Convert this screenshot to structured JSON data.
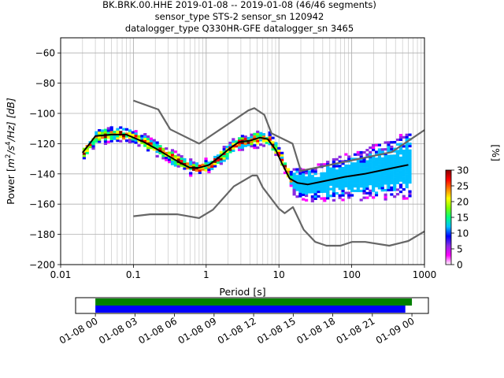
{
  "chart_data": [
    {
      "type": "heatmap",
      "title_lines": [
        "BK.BRK.00.HHE   2019-01-08 -- 2019-01-08  (46/46 segments)",
        "sensor_type STS-2 sensor_sn 120942",
        "datalogger_type Q330HR-GFE datalogger_sn 3465"
      ],
      "xlabel": "Period [s]",
      "ylabel_prefix": "Power [",
      "ylabel_math": "m",
      "ylabel_exp1": "2",
      "ylabel_mid": "/s",
      "ylabel_exp2": "4",
      "ylabel_suffix": "/Hz] [dB]",
      "xscale": "log",
      "xlim": [
        0.01,
        1000
      ],
      "ylim": [
        -200,
        -50
      ],
      "xticks": [
        {
          "value": 0.01,
          "label": "0.01"
        },
        {
          "value": 0.1,
          "label": "0.1"
        },
        {
          "value": 1,
          "label": "1"
        },
        {
          "value": 10,
          "label": "10"
        },
        {
          "value": 100,
          "label": "100"
        },
        {
          "value": 1000,
          "label": "1000"
        }
      ],
      "yticks": [
        {
          "value": -60,
          "label": "−60"
        },
        {
          "value": -80,
          "label": "−80"
        },
        {
          "value": -100,
          "label": "−100"
        },
        {
          "value": -120,
          "label": "−120"
        },
        {
          "value": -140,
          "label": "−140"
        },
        {
          "value": -160,
          "label": "−160"
        },
        {
          "value": -180,
          "label": "−180"
        },
        {
          "value": -200,
          "label": "−200"
        }
      ],
      "grid": true,
      "colorbar": {
        "label": "[%]",
        "range": [
          0,
          30
        ],
        "ticks": [
          {
            "value": 0,
            "label": "0"
          },
          {
            "value": 5,
            "label": "5"
          },
          {
            "value": 10,
            "label": "10"
          },
          {
            "value": 15,
            "label": "15"
          },
          {
            "value": 20,
            "label": "20"
          },
          {
            "value": 25,
            "label": "25"
          },
          {
            "value": 30,
            "label": "30"
          }
        ],
        "colors": [
          "#ffffff",
          "#ff00ff",
          "#8a2be2",
          "#0000ff",
          "#00bfff",
          "#00ff7f",
          "#7fff00",
          "#ffff00",
          "#ff8000",
          "#ff0000",
          "#8b0000"
        ]
      },
      "series": [
        {
          "role": "noise-model-high",
          "color": "#666666",
          "points": [
            [
              0.1,
              -91.5
            ],
            [
              0.22,
              -97.4
            ],
            [
              0.32,
              -110.5
            ],
            [
              0.8,
              -120
            ],
            [
              3.8,
              -98
            ],
            [
              4.6,
              -96.5
            ],
            [
              6.3,
              -101
            ],
            [
              7.9,
              -113.2
            ],
            [
              15.4,
              -120
            ],
            [
              20,
              -138
            ],
            [
              354,
              -125.6
            ],
            [
              1000,
              -111
            ]
          ]
        },
        {
          "role": "noise-model-low",
          "color": "#666666",
          "points": [
            [
              0.1,
              -168
            ],
            [
              0.17,
              -166.7
            ],
            [
              0.4,
              -166.7
            ],
            [
              0.8,
              -169.2
            ],
            [
              1.24,
              -163.7
            ],
            [
              2.4,
              -148.3
            ],
            [
              4.3,
              -141.1
            ],
            [
              5,
              -141.1
            ],
            [
              6,
              -149
            ],
            [
              10,
              -163
            ],
            [
              12,
              -166
            ],
            [
              15.6,
              -162
            ],
            [
              21.9,
              -177
            ],
            [
              31.6,
              -185
            ],
            [
              45,
              -187.5
            ],
            [
              70,
              -187.5
            ],
            [
              101,
              -185
            ],
            [
              154,
              -185
            ],
            [
              328,
              -187.5
            ],
            [
              600,
              -184.4
            ],
            [
              1000,
              -178
            ]
          ]
        },
        {
          "role": "mode",
          "color": "#000000",
          "points": [
            [
              0.02,
              -126
            ],
            [
              0.026,
              -119
            ],
            [
              0.03,
              -115
            ],
            [
              0.05,
              -114
            ],
            [
              0.08,
              -114
            ],
            [
              0.1,
              -116
            ],
            [
              0.14,
              -119
            ],
            [
              0.2,
              -123
            ],
            [
              0.3,
              -128
            ],
            [
              0.45,
              -133
            ],
            [
              0.6,
              -136
            ],
            [
              0.8,
              -136
            ],
            [
              1.1,
              -134
            ],
            [
              1.5,
              -129
            ],
            [
              2,
              -124
            ],
            [
              2.8,
              -119
            ],
            [
              4,
              -118
            ],
            [
              5.5,
              -116
            ],
            [
              7,
              -117
            ],
            [
              9,
              -124
            ],
            [
              11,
              -133
            ],
            [
              14,
              -143
            ],
            [
              18,
              -146
            ],
            [
              25,
              -147
            ],
            [
              40,
              -145
            ],
            [
              80,
              -142
            ],
            [
              150,
              -140
            ],
            [
              300,
              -137
            ],
            [
              600,
              -134
            ]
          ]
        }
      ]
    },
    {
      "type": "timeline",
      "xlim": [
        "2019-01-07 22:30",
        "2019-01-09 01:15"
      ],
      "xticks": [
        {
          "value": "2019-01-08 00:00",
          "label": "01-08 00"
        },
        {
          "value": "2019-01-08 03:00",
          "label": "01-08 03"
        },
        {
          "value": "2019-01-08 06:00",
          "label": "01-08 06"
        },
        {
          "value": "2019-01-08 09:00",
          "label": "01-08 09"
        },
        {
          "value": "2019-01-08 12:00",
          "label": "01-08 12"
        },
        {
          "value": "2019-01-08 15:00",
          "label": "01-08 15"
        },
        {
          "value": "2019-01-08 18:00",
          "label": "01-08 18"
        },
        {
          "value": "2019-01-08 21:00",
          "label": "01-08 21"
        },
        {
          "value": "2019-01-09 00:00",
          "label": "01-09 00"
        }
      ],
      "bars": [
        {
          "color": "#008000",
          "start": "2019-01-08 00:00",
          "end": "2019-01-09 00:00"
        },
        {
          "color": "#0000ff",
          "start": "2019-01-08 00:00",
          "end": "2019-01-08 23:30"
        }
      ]
    }
  ]
}
